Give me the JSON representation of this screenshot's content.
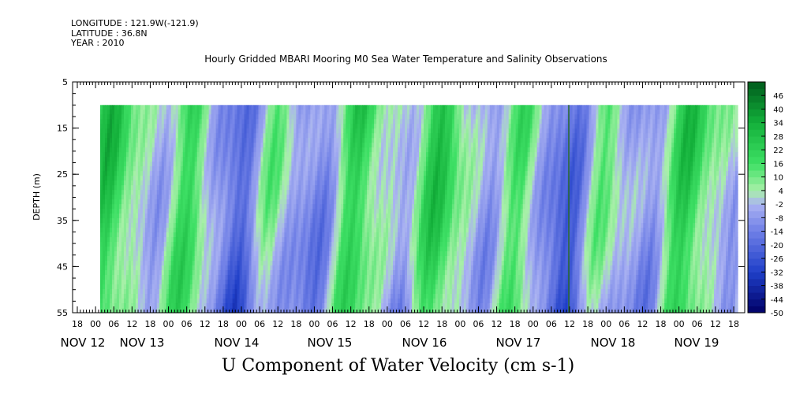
{
  "header": {
    "longitude": "LONGITUDE : 121.9W(-121.9)",
    "latitude": "LATITUDE : 36.8N",
    "year": "YEAR : 2010",
    "title": "Hourly Gridded MBARI Mooring M0 Sea Water Temperature and Salinity Observations"
  },
  "chart_data": {
    "type": "heatmap",
    "title": "Hourly Gridded MBARI Mooring M0 Sea Water Temperature and Salinity Observations",
    "variable_label": "U Component of Water Velocity (cm s-1)",
    "ylabel": "DEPTH (m)",
    "y_ticks": [
      5,
      15,
      25,
      35,
      45,
      55
    ],
    "ylim": [
      5,
      55
    ],
    "y_inverted": true,
    "data_depth_range": [
      10,
      55
    ],
    "x_hour_ticks": [
      "18",
      "00",
      "06",
      "12",
      "18",
      "00",
      "06",
      "12",
      "18",
      "00",
      "06",
      "12",
      "18",
      "00",
      "06",
      "12",
      "18",
      "00",
      "06",
      "12",
      "18",
      "00",
      "06",
      "12",
      "18",
      "00",
      "06",
      "12",
      "18",
      "00",
      "06",
      "12",
      "18",
      "00",
      "06",
      "12",
      "18"
    ],
    "x_day_labels": [
      "NOV 12",
      "NOV 13",
      "NOV 14",
      "NOV 15",
      "NOV 16",
      "NOV 17",
      "NOV 18",
      "NOV 19"
    ],
    "colorbar_ticks": [
      46,
      40,
      34,
      28,
      22,
      16,
      10,
      4,
      -2,
      -8,
      -14,
      -20,
      -26,
      -32,
      -38,
      -44,
      -50
    ],
    "colorbar_range": [
      -50,
      52
    ],
    "colorscale": [
      {
        "value": -50,
        "color": "#000066"
      },
      {
        "value": -32,
        "color": "#1f3fc8"
      },
      {
        "value": -14,
        "color": "#6f7fe6"
      },
      {
        "value": -2,
        "color": "#aab2f2"
      },
      {
        "value": 4,
        "color": "#a8f0a8"
      },
      {
        "value": 16,
        "color": "#3ee065"
      },
      {
        "value": 34,
        "color": "#13b03a"
      },
      {
        "value": 52,
        "color": "#005c1c"
      }
    ],
    "grid": false,
    "legend": "colorbar-right"
  }
}
